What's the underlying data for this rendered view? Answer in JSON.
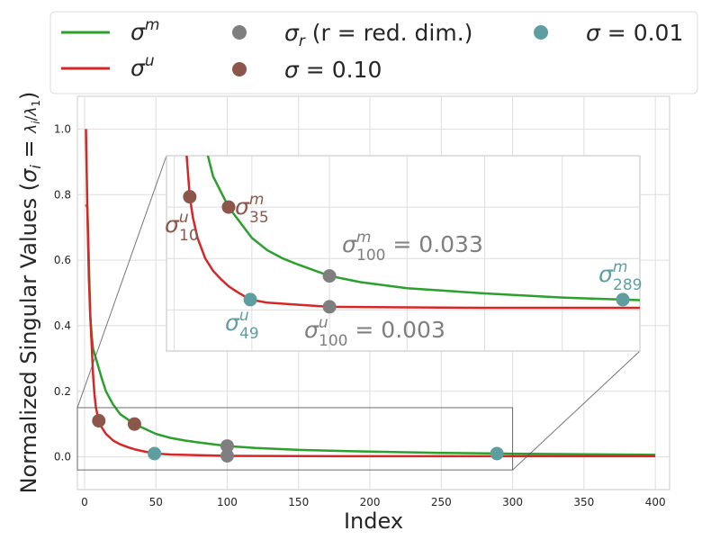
{
  "chart_data": {
    "type": "line",
    "xlabel": "Index",
    "ylabel": "Normalized Singular Values (σ_i = λ_i / λ_1)",
    "xlim": [
      -5,
      410
    ],
    "ylim": [
      -0.1,
      1.1
    ],
    "xticks": [
      0,
      50,
      100,
      150,
      200,
      250,
      300,
      350,
      400
    ],
    "yticks": [
      0.0,
      0.2,
      0.4,
      0.6,
      0.8,
      1.0
    ],
    "grid": true,
    "legend_position": "top",
    "colors": {
      "sigma_m": "#2ca02c",
      "sigma_u": "#d62728",
      "reduced": "#7f7f7f",
      "s010": "#8c564b",
      "s001": "#5f9ea0"
    },
    "legend": {
      "sigma_m": "σ^m",
      "sigma_u": "σ^u",
      "sigma_r": "σ_r (r = red. dim.)",
      "s010": "σ = 0.10",
      "s001": "σ = 0.01"
    },
    "series": [
      {
        "name": "σ^m",
        "x": [
          1,
          2,
          3,
          4,
          5,
          6,
          8,
          10,
          12,
          15,
          20,
          25,
          30,
          35,
          40,
          50,
          60,
          70,
          80,
          100,
          120,
          150,
          200,
          250,
          289,
          300,
          350,
          400
        ],
        "y": [
          0.77,
          0.76,
          0.6,
          0.43,
          0.37,
          0.33,
          0.3,
          0.27,
          0.24,
          0.2,
          0.16,
          0.13,
          0.115,
          0.1,
          0.09,
          0.07,
          0.058,
          0.05,
          0.044,
          0.033,
          0.027,
          0.021,
          0.016,
          0.012,
          0.01,
          0.0095,
          0.008,
          0.006
        ]
      },
      {
        "name": "σ^u",
        "x": [
          1,
          2,
          3,
          4,
          5,
          6,
          7,
          8,
          10,
          12,
          15,
          20,
          25,
          30,
          35,
          40,
          49,
          60,
          80,
          100,
          150,
          200,
          300,
          400
        ],
        "y": [
          1.0,
          0.75,
          0.55,
          0.43,
          0.34,
          0.25,
          0.19,
          0.15,
          0.11,
          0.09,
          0.07,
          0.05,
          0.038,
          0.03,
          0.023,
          0.018,
          0.01,
          0.007,
          0.005,
          0.003,
          0.0025,
          0.002,
          0.002,
          0.002
        ]
      }
    ],
    "points": [
      {
        "label": "σ^u_10",
        "x": 10,
        "y": 0.11,
        "color": "#8c564b"
      },
      {
        "label": "σ^m_35",
        "x": 35,
        "y": 0.1,
        "color": "#8c564b"
      },
      {
        "label": "σ^u_49",
        "x": 49,
        "y": 0.01,
        "color": "#5f9ea0"
      },
      {
        "label": "σ^m_289",
        "x": 289,
        "y": 0.01,
        "color": "#5f9ea0"
      },
      {
        "label": "σ^m_100 = 0.033",
        "x": 100,
        "y": 0.033,
        "color": "#7f7f7f"
      },
      {
        "label": "σ^u_100 = 0.003",
        "x": 100,
        "y": 0.003,
        "color": "#7f7f7f"
      }
    ],
    "inset": {
      "xlim": [
        -5,
        300
      ],
      "ylim": [
        -0.04,
        0.15
      ],
      "annotations": {
        "u10": {
          "base": "σ",
          "sup": "u",
          "sub": "10"
        },
        "m35": {
          "base": "σ",
          "sup": "m",
          "sub": "35"
        },
        "u49": {
          "base": "σ",
          "sup": "u",
          "sub": "49"
        },
        "m289": {
          "base": "σ",
          "sup": "m",
          "sub": "289"
        },
        "m100": {
          "base": "σ",
          "sup": "m",
          "sub": "100",
          "value": " = 0.033"
        },
        "u100": {
          "base": "σ",
          "sup": "u",
          "sub": "100",
          "value": " = 0.003"
        }
      }
    }
  }
}
